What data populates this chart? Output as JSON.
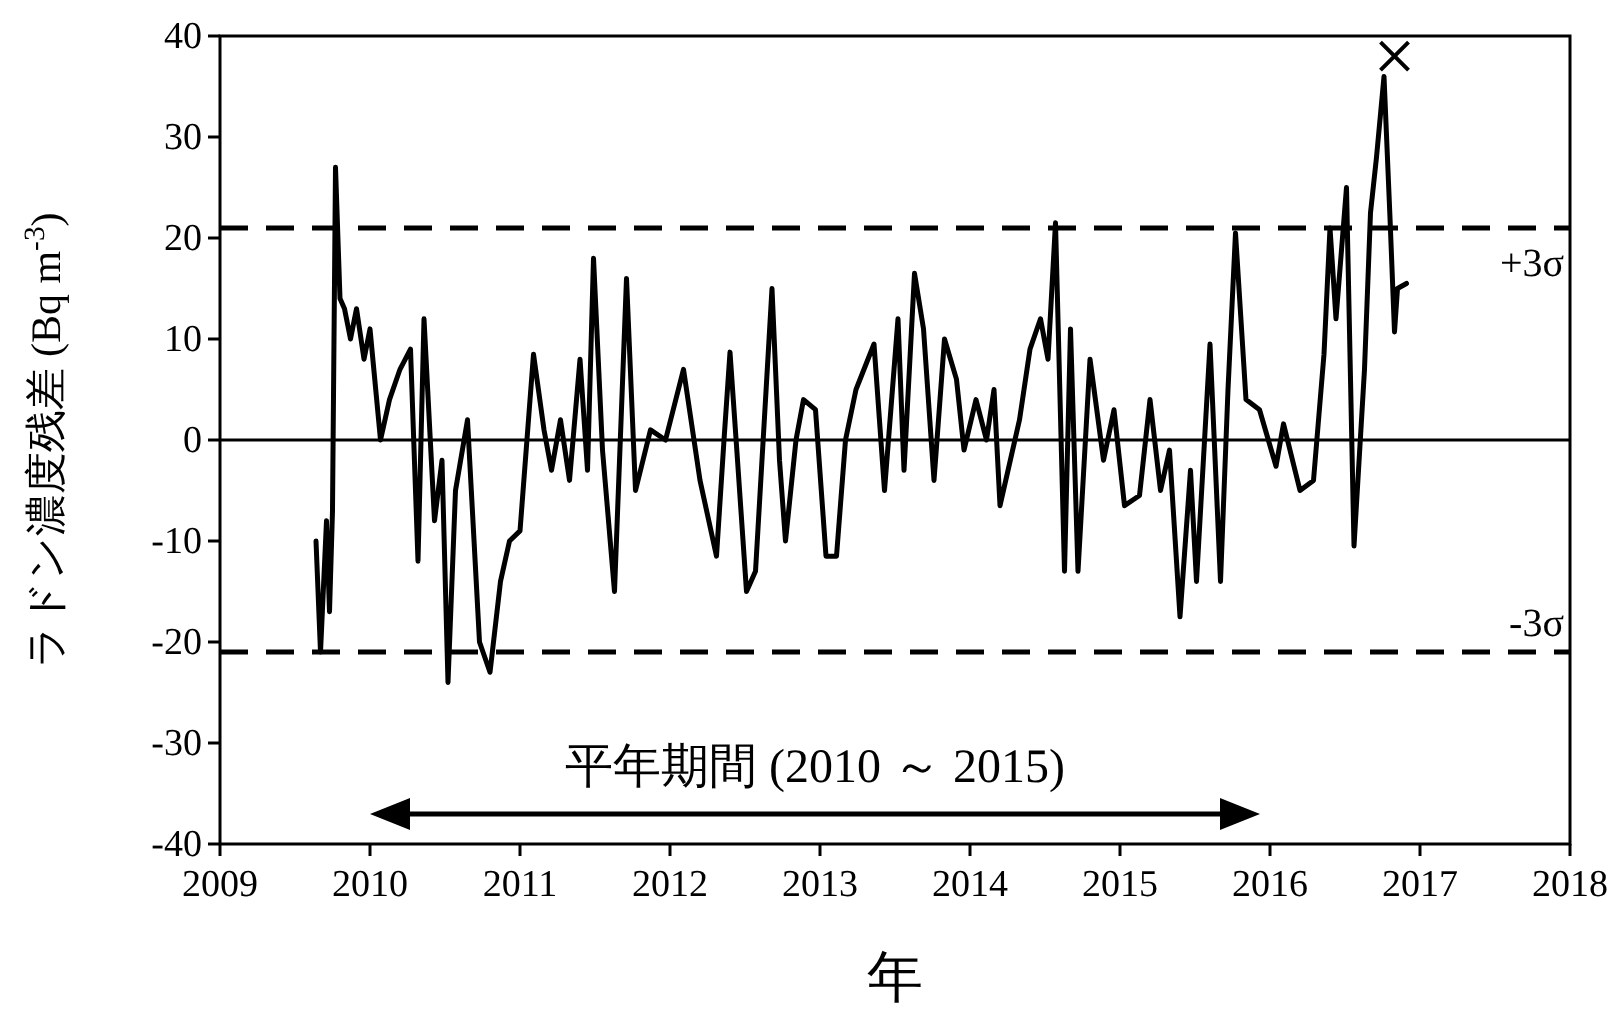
{
  "chart_data": {
    "type": "line",
    "xlabel": "年",
    "ylabel": "ラドン濃度残差 (Bq m$^{-3}$)",
    "xlim": [
      2009,
      2018
    ],
    "xticks": [
      2009,
      2010,
      2011,
      2012,
      2013,
      2014,
      2015,
      2016,
      2017,
      2018
    ],
    "ylim": [
      -40,
      40
    ],
    "yticks": [
      -40,
      -30,
      -20,
      -10,
      0,
      10,
      20,
      30,
      40
    ],
    "series": [
      {
        "color": "#000000",
        "line_style": "solid",
        "marker": "none",
        "x": [
          2009.64,
          2009.67,
          2009.71,
          2009.73,
          2009.75,
          2009.77,
          2009.8,
          2009.83,
          2009.87,
          2009.91,
          2009.96,
          2010.0,
          2010.07,
          2010.13,
          2010.2,
          2010.27,
          2010.32,
          2010.36,
          2010.43,
          2010.48,
          2010.52,
          2010.57,
          2010.65,
          2010.73,
          2010.8,
          2010.87,
          2010.93,
          2011.0,
          2011.09,
          2011.16,
          2011.21,
          2011.27,
          2011.33,
          2011.4,
          2011.45,
          2011.49,
          2011.55,
          2011.63,
          2011.71,
          2011.77,
          2011.87,
          2011.97,
          2012.09,
          2012.2,
          2012.31,
          2012.36,
          2012.4,
          2012.45,
          2012.51,
          2012.57,
          2012.68,
          2012.73,
          2012.77,
          2012.84,
          2012.89,
          2012.97,
          2013.04,
          2013.11,
          2013.17,
          2013.24,
          2013.36,
          2013.43,
          2013.52,
          2013.56,
          2013.63,
          2013.69,
          2013.76,
          2013.83,
          2013.91,
          2013.96,
          2014.04,
          2014.11,
          2014.16,
          2014.2,
          2014.33,
          2014.4,
          2014.47,
          2014.52,
          2014.57,
          2014.63,
          2014.67,
          2014.72,
          2014.8,
          2014.89,
          2014.96,
          2015.03,
          2015.13,
          2015.2,
          2015.27,
          2015.33,
          2015.4,
          2015.47,
          2015.51,
          2015.6,
          2015.67,
          2015.72,
          2015.77,
          2015.84,
          2015.93,
          2016.04,
          2016.09,
          2016.2,
          2016.29,
          2016.36,
          2016.4,
          2016.44,
          2016.51,
          2016.56,
          2016.63,
          2016.67,
          2016.71,
          2016.76,
          2016.8,
          2016.83,
          2016.85,
          2016.91
        ],
        "values": [
          -10,
          -21,
          -8,
          -17,
          -7,
          27,
          14,
          13,
          10,
          13,
          8,
          11,
          0,
          4,
          7,
          9,
          -12,
          12,
          -8,
          -2,
          -24,
          -5,
          2,
          -20,
          -23,
          -14,
          -10,
          -9,
          8.5,
          1,
          -3,
          2,
          -4,
          8,
          -3,
          18,
          -1,
          -15,
          16,
          -5,
          1,
          0,
          7,
          -4,
          -11.5,
          0,
          8.7,
          -2,
          -15,
          -13,
          15,
          -2,
          -10,
          0,
          4,
          3,
          -11.5,
          -11.5,
          0,
          5,
          9.5,
          -5,
          12,
          -3,
          16.5,
          11,
          -4,
          10,
          6,
          -1,
          4,
          0,
          5,
          -6.5,
          2,
          9,
          12,
          8,
          21.5,
          -13,
          11,
          -13,
          8,
          -2,
          3,
          -6.5,
          -5.5,
          4,
          -5,
          -1,
          -17.5,
          -3,
          -14,
          9.5,
          -14,
          5,
          20.5,
          4,
          3,
          -2.6,
          1.6,
          -5,
          -4,
          8.5,
          21,
          12,
          25,
          -10.5,
          7,
          22.5,
          28,
          36,
          22,
          10.7,
          15,
          15.5
        ]
      },
      {
        "type": "scatter",
        "color": "#000000",
        "marker": "cross",
        "x": [
          2016.83
        ],
        "values": [
          38
        ]
      }
    ],
    "ref_lines": [
      {
        "axis": "y",
        "value": 0,
        "line_style": "solid"
      },
      {
        "axis": "y",
        "value": 21,
        "label": "+3σ",
        "line_style": "dashed"
      },
      {
        "axis": "y",
        "value": -21,
        "label": "-3σ",
        "line_style": "dashed"
      }
    ],
    "annotations": [
      "平年期間 (2010 ～ 2015)"
    ]
  }
}
